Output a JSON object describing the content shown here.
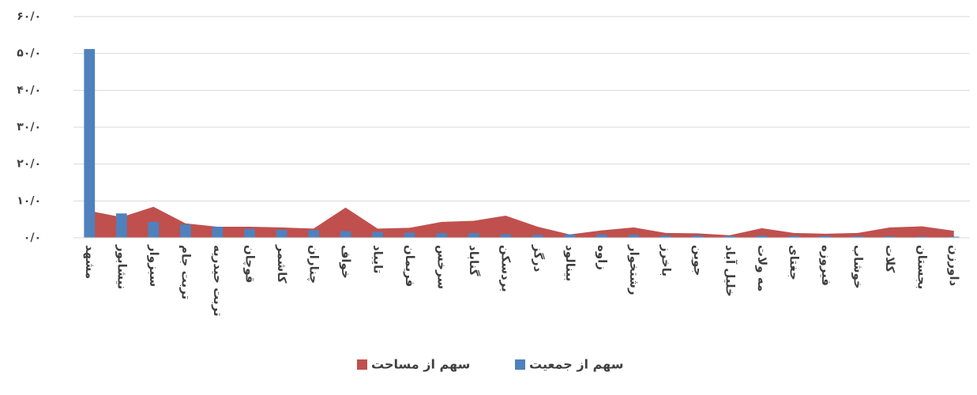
{
  "chart_data": {
    "type": "combo",
    "categories": [
      "مشهد",
      "نیشابور",
      "سبزوار",
      "تربت جام",
      "تربت حیدریه",
      "قوچان",
      "کاشمر",
      "چناران",
      "خواف",
      "تایباد",
      "فریمان",
      "سرخس",
      "گناباد",
      "بردسکن",
      "درگز",
      "بینالود",
      "زاوه",
      "رشتخوار",
      "باخرز",
      "جوین",
      "خلیل آباد",
      "مه ولات",
      "جغتای",
      "فیروزه",
      "خوشاب",
      "کلات",
      "بجستان",
      "داورزن"
    ],
    "series": [
      {
        "name": "سهم از جمعیت",
        "type": "bar",
        "color": "#4f81bd",
        "values": [
          51.2,
          6.6,
          4.3,
          3.6,
          3.0,
          2.4,
          2.2,
          2.1,
          1.8,
          1.6,
          1.4,
          1.3,
          1.3,
          1.0,
          0.8,
          0.9,
          0.9,
          0.8,
          0.6,
          0.6,
          0.5,
          0.6,
          0.5,
          0.5,
          0.4,
          0.4,
          0.3,
          0.3
        ]
      },
      {
        "name": "سهم از مساحت",
        "type": "area",
        "color": "#c0504d",
        "values": [
          7.3,
          5.6,
          8.4,
          3.9,
          3.0,
          3.0,
          2.8,
          2.5,
          8.2,
          2.5,
          2.7,
          4.3,
          4.6,
          6.0,
          3.0,
          0.9,
          2.0,
          2.8,
          1.3,
          1.2,
          0.7,
          2.6,
          1.3,
          1.1,
          1.3,
          2.8,
          3.1,
          1.9
        ]
      }
    ],
    "ylim": [
      0,
      60
    ],
    "yticks": [
      {
        "value": 0,
        "label": "۰/۰"
      },
      {
        "value": 10,
        "label": "۱۰/۰"
      },
      {
        "value": 20,
        "label": "۲۰/۰"
      },
      {
        "value": 30,
        "label": "۳۰/۰"
      },
      {
        "value": 40,
        "label": "۴۰/۰"
      },
      {
        "value": 50,
        "label": "۵۰/۰"
      },
      {
        "value": 60,
        "label": "۶۰/۰"
      }
    ],
    "grid": true,
    "legend": "bottom"
  }
}
